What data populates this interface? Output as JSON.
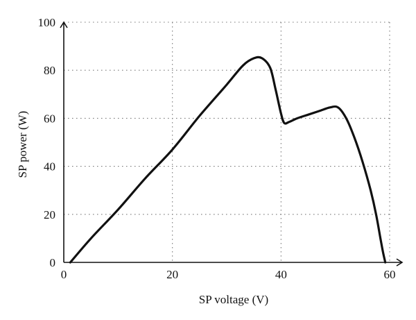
{
  "chart_data": {
    "type": "line",
    "xlabel": "SP voltage (V)",
    "ylabel": "SP power (W)",
    "xlim": [
      0,
      60
    ],
    "ylim": [
      0,
      100
    ],
    "x_ticks": [
      0,
      20,
      40,
      60
    ],
    "y_ticks": [
      0,
      20,
      40,
      60,
      80,
      100
    ],
    "grid": true,
    "series": [
      {
        "x": [
          1.2,
          5,
          10,
          15,
          20,
          25,
          30,
          33,
          35,
          36.5,
          38,
          39,
          40,
          40.6,
          41.5,
          43,
          45,
          47,
          49,
          50.5,
          52,
          53.5,
          55,
          56.5,
          57.5,
          58.3,
          58.8,
          59.2
        ],
        "y": [
          0,
          10,
          22,
          35,
          47,
          61,
          74,
          82,
          85,
          85,
          81,
          72,
          62,
          58,
          58.5,
          60,
          61.5,
          63,
          64.5,
          64.5,
          60,
          52,
          42,
          30,
          20,
          10,
          4,
          0
        ]
      }
    ]
  }
}
